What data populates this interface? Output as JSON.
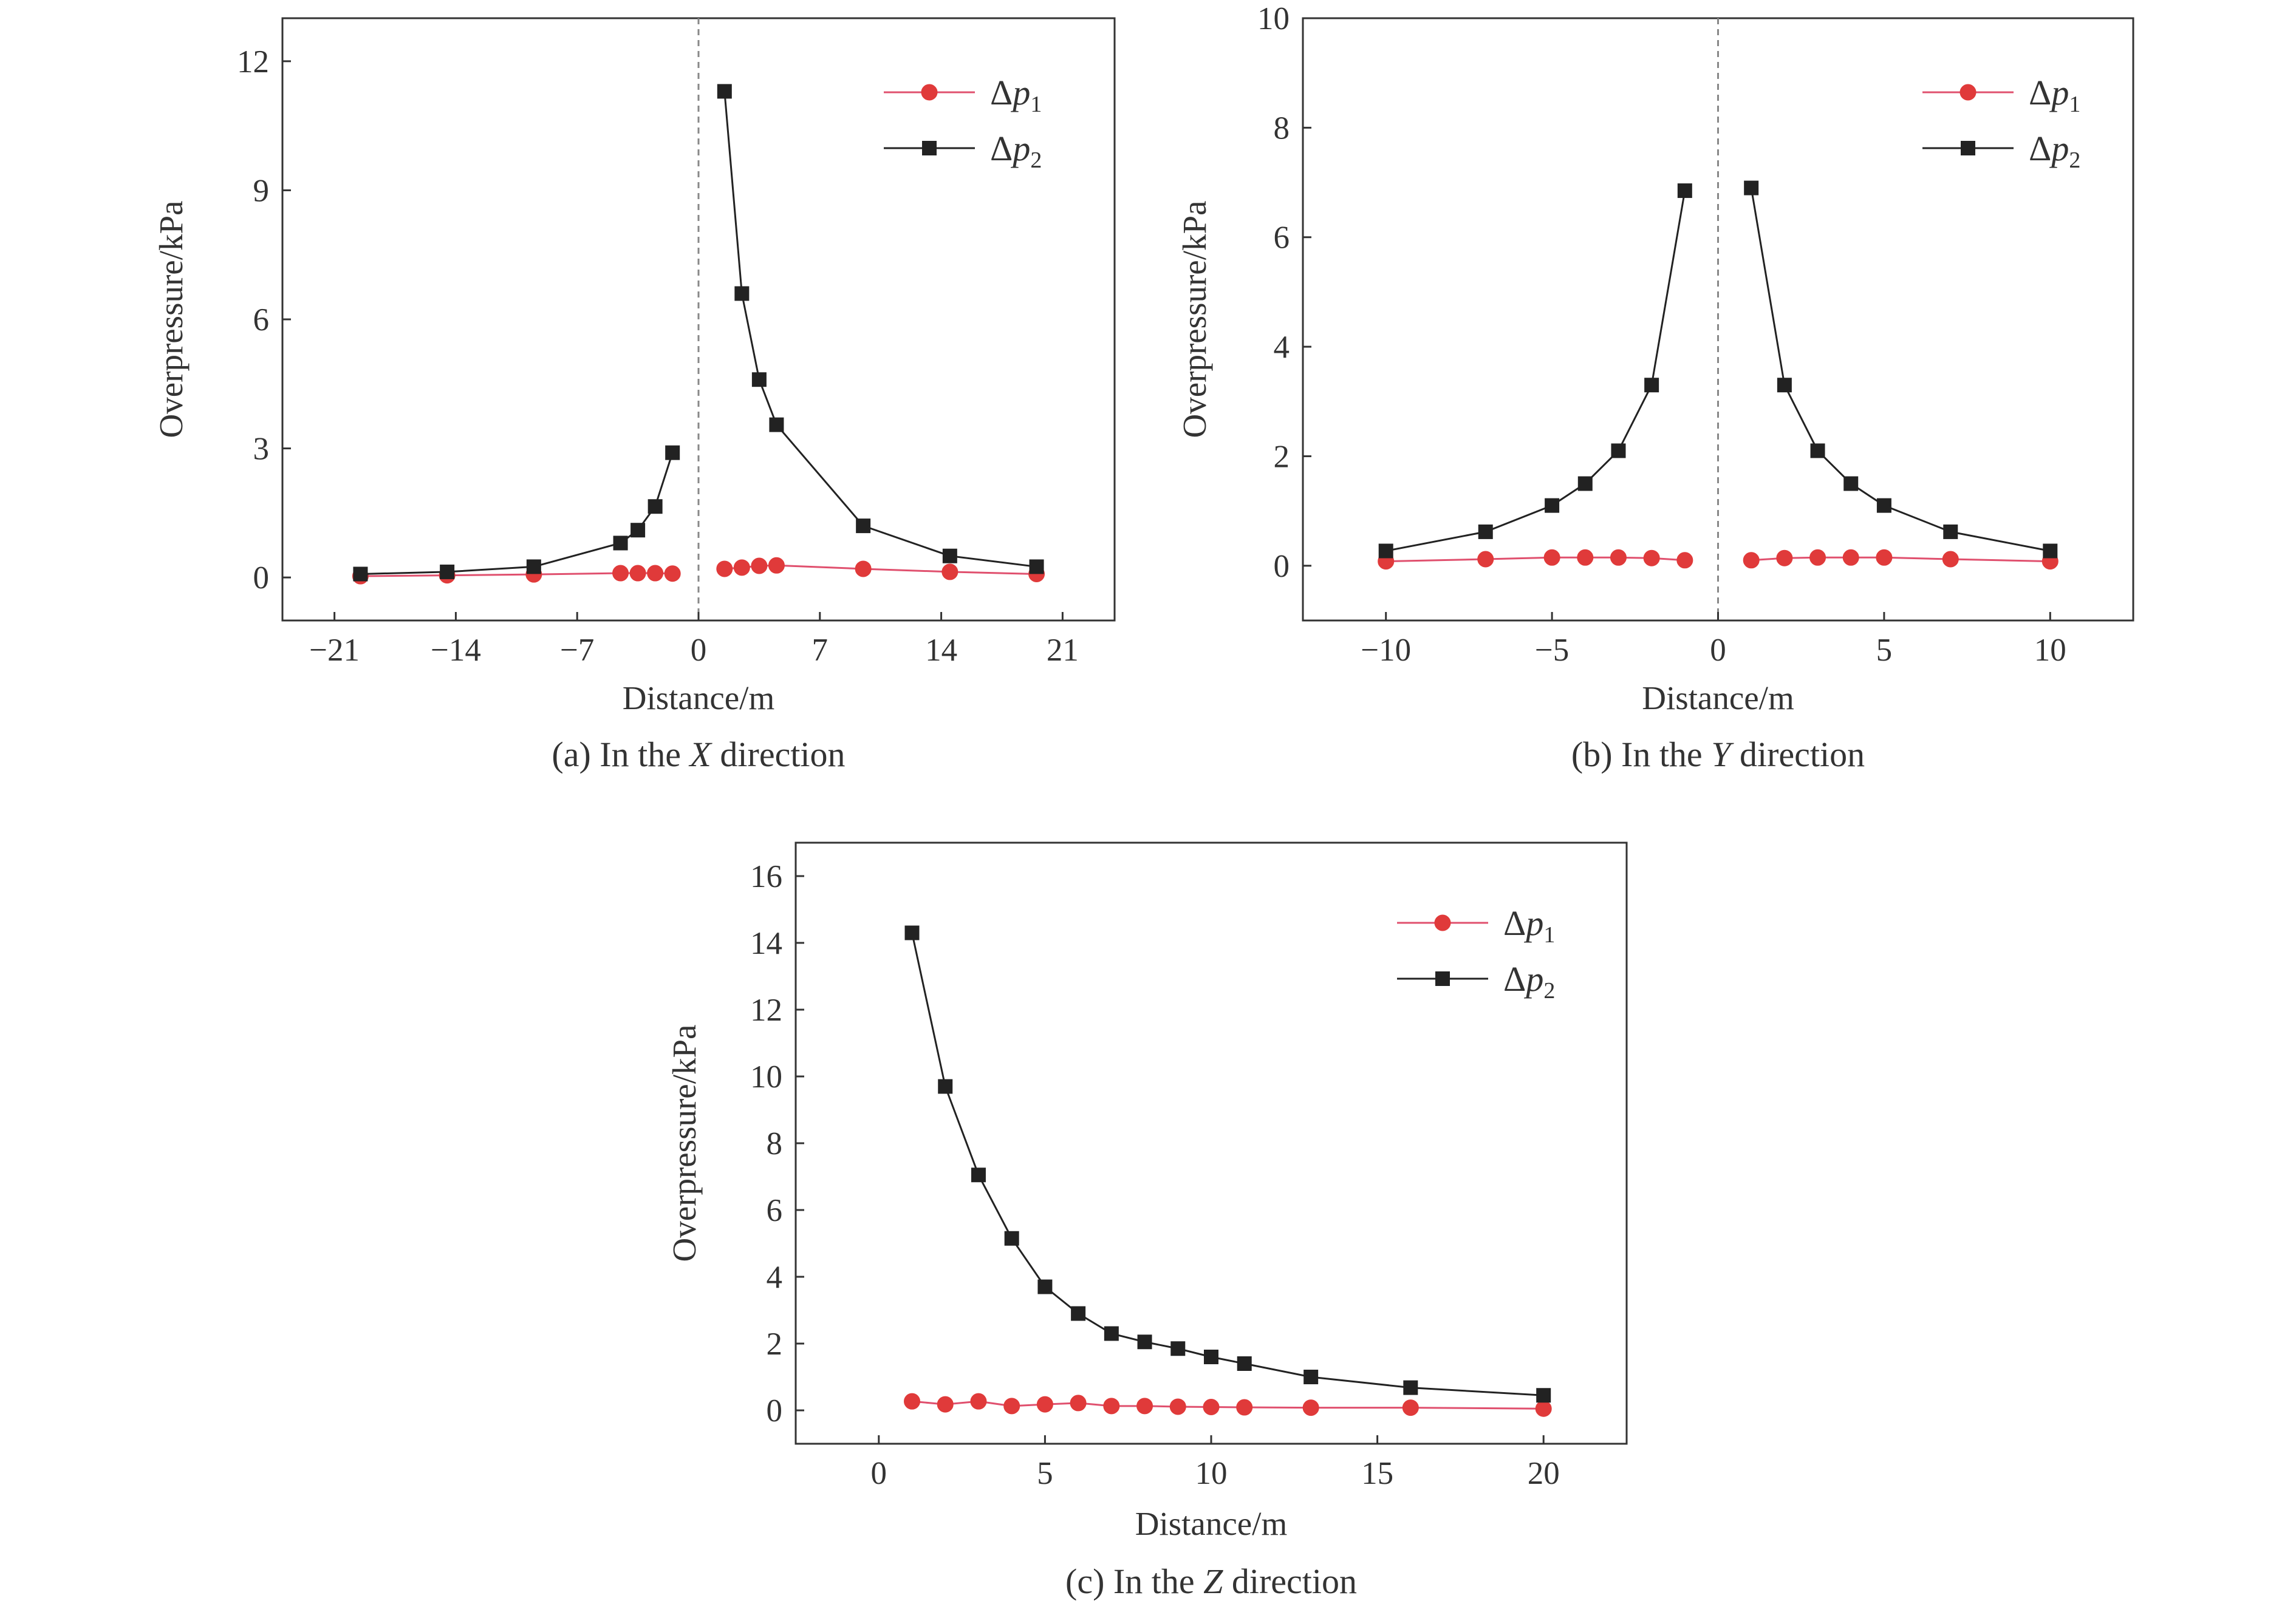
{
  "colors": {
    "p1": "#e03a3a",
    "p1_line": "#e0506e",
    "p2": "#222222",
    "axis": "#333333",
    "zero_line": "#888888"
  },
  "legend_items": [
    {
      "delta": "Δ",
      "p": "p",
      "sub": "1"
    },
    {
      "delta": "Δ",
      "p": "p",
      "sub": "2"
    }
  ],
  "chart_data": [
    {
      "type": "line",
      "caption_prefix": "(a) In the ",
      "caption_axis": "X",
      "caption_suffix": " direction",
      "xlabel": "Distance/m",
      "ylabel": "Overpressure/kPa",
      "xlim": [
        -24,
        24
      ],
      "ylim": [
        -1,
        13
      ],
      "xticks": [
        -21,
        -14,
        -7,
        0,
        7,
        14,
        21
      ],
      "xtick_labels": [
        "−21",
        "−14",
        "−7",
        "0",
        "7",
        "14",
        "21"
      ],
      "yticks": [
        0,
        3,
        6,
        9,
        12
      ],
      "ytick_labels": [
        "0",
        "3",
        "6",
        "9",
        "12"
      ],
      "zero_line": true,
      "legend_position": "top-right",
      "series": [
        {
          "name": "Δp1",
          "marker": "circle",
          "segments": [
            {
              "x": [
                -19.5,
                -14.5,
                -9.5,
                -4.5,
                -3.5,
                -2.5,
                -1.5
              ],
              "y": [
                0.03,
                0.05,
                0.07,
                0.1,
                0.1,
                0.1,
                0.09
              ]
            },
            {
              "x": [
                1.5,
                2.5,
                3.5,
                4.5,
                9.5,
                14.5,
                19.5
              ],
              "y": [
                0.2,
                0.23,
                0.27,
                0.28,
                0.2,
                0.13,
                0.08
              ]
            }
          ]
        },
        {
          "name": "Δp2",
          "marker": "square",
          "segments": [
            {
              "x": [
                -19.5,
                -14.5,
                -9.5,
                -4.5,
                -3.5,
                -2.5,
                -1.5
              ],
              "y": [
                0.08,
                0.13,
                0.25,
                0.8,
                1.1,
                1.65,
                2.9
              ]
            },
            {
              "x": [
                1.5,
                2.5,
                3.5,
                4.5,
                9.5,
                14.5,
                19.5
              ],
              "y": [
                11.3,
                6.6,
                4.6,
                3.55,
                1.2,
                0.5,
                0.25
              ]
            }
          ]
        }
      ]
    },
    {
      "type": "line",
      "caption_prefix": "(b) In the ",
      "caption_axis": "Y",
      "caption_suffix": " direction",
      "xlabel": "Distance/m",
      "ylabel": "Overpressure/kPa",
      "xlim": [
        -12.5,
        12.5
      ],
      "ylim": [
        -1,
        10
      ],
      "xticks": [
        -10,
        -5,
        0,
        5,
        10
      ],
      "xtick_labels": [
        "−10",
        "−5",
        "0",
        "5",
        "10"
      ],
      "yticks": [
        0,
        2,
        4,
        6,
        8,
        10
      ],
      "ytick_labels": [
        "0",
        "2",
        "4",
        "6",
        "8",
        "10"
      ],
      "zero_line": true,
      "legend_position": "top-right",
      "series": [
        {
          "name": "Δp1",
          "marker": "circle",
          "segments": [
            {
              "x": [
                -10,
                -7,
                -5,
                -4,
                -3,
                -2,
                -1
              ],
              "y": [
                0.08,
                0.12,
                0.15,
                0.15,
                0.15,
                0.14,
                0.1
              ]
            },
            {
              "x": [
                1,
                2,
                3,
                4,
                5,
                7,
                10
              ],
              "y": [
                0.1,
                0.14,
                0.15,
                0.15,
                0.15,
                0.12,
                0.08
              ]
            }
          ]
        },
        {
          "name": "Δp2",
          "marker": "square",
          "segments": [
            {
              "x": [
                -10,
                -7,
                -5,
                -4,
                -3,
                -2,
                -1
              ],
              "y": [
                0.27,
                0.62,
                1.1,
                1.5,
                2.1,
                3.3,
                6.85
              ]
            },
            {
              "x": [
                1,
                2,
                3,
                4,
                5,
                7,
                10
              ],
              "y": [
                6.9,
                3.3,
                2.1,
                1.5,
                1.1,
                0.62,
                0.27
              ]
            }
          ]
        }
      ]
    },
    {
      "type": "line",
      "caption_prefix": "(c) In the ",
      "caption_axis": "Z",
      "caption_suffix": " direction",
      "xlabel": "Distance/m",
      "ylabel": "Overpressure/kPa",
      "xlim": [
        -2.5,
        22.5
      ],
      "ylim": [
        -1,
        17
      ],
      "xticks": [
        0,
        5,
        10,
        15,
        20
      ],
      "xtick_labels": [
        "0",
        "5",
        "10",
        "15",
        "20"
      ],
      "yticks": [
        0,
        2,
        4,
        6,
        8,
        10,
        12,
        14,
        16
      ],
      "ytick_labels": [
        "0",
        "2",
        "4",
        "6",
        "8",
        "10",
        "12",
        "14",
        "16"
      ],
      "zero_line": false,
      "legend_position": "top-right",
      "series": [
        {
          "name": "Δp1",
          "marker": "circle",
          "segments": [
            {
              "x": [
                1,
                2,
                3,
                4,
                5,
                6,
                7,
                8,
                9,
                10,
                11,
                13,
                16,
                20
              ],
              "y": [
                0.27,
                0.18,
                0.27,
                0.13,
                0.18,
                0.22,
                0.13,
                0.13,
                0.11,
                0.1,
                0.09,
                0.08,
                0.08,
                0.05
              ]
            }
          ]
        },
        {
          "name": "Δp2",
          "marker": "square",
          "segments": [
            {
              "x": [
                1,
                2,
                3,
                4,
                5,
                6,
                7,
                8,
                9,
                10,
                11,
                13,
                16,
                20
              ],
              "y": [
                14.3,
                9.7,
                7.05,
                5.15,
                3.7,
                2.9,
                2.3,
                2.05,
                1.85,
                1.6,
                1.4,
                1.0,
                0.68,
                0.45
              ]
            }
          ]
        }
      ]
    }
  ]
}
